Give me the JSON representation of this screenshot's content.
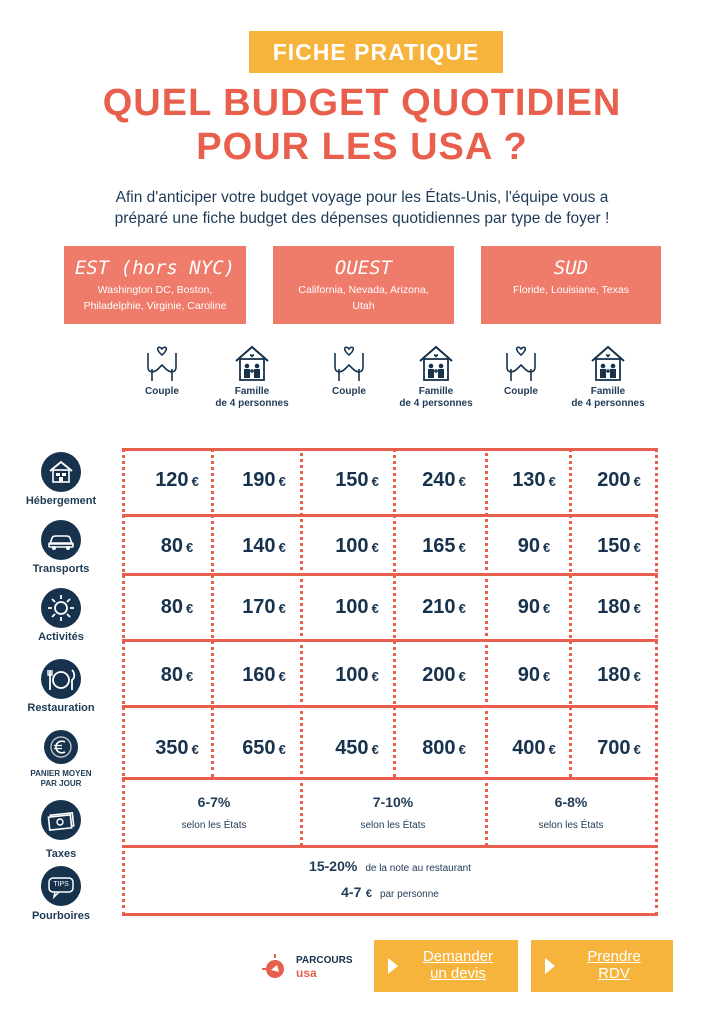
{
  "header": {
    "badge": "FICHE PRATIQUE",
    "title_line1": "QUEL BUDGET QUOTIDIEN",
    "title_line2": "POUR LES USA ?",
    "intro_line1": "Afin d'anticiper votre budget voyage pour les États-Unis, l'équipe vous a",
    "intro_line2": "préparé une fiche budget des dépenses quotidiennes par type de foyer !"
  },
  "regions": [
    {
      "name": "EST (hors NYC)",
      "states_line1": "Washington DC, Boston,",
      "states_line2": "Philadelphie, Virginie, Caroline"
    },
    {
      "name": "OUEST",
      "states_line1": "California, Nevada, Arizona,",
      "states_line2": "Utah"
    },
    {
      "name": "SUD",
      "states_line1": "Floride, Louisiane, Texas",
      "states_line2": ""
    }
  ],
  "households": {
    "couple": "Couple",
    "family_line1": "Famille",
    "family_line2": "de 4 personnes"
  },
  "categories": {
    "lodging": "Hébergement",
    "transport": "Transports",
    "activities": "Activités",
    "food": "Restauration",
    "basket_line1": "PANIER MOYEN",
    "basket_line2": "PAR JOUR",
    "taxes": "Taxes",
    "tips": "Pourboires"
  },
  "currency": "€",
  "table": {
    "rows": [
      [
        "120",
        "190",
        "150",
        "240",
        "130",
        "200"
      ],
      [
        "80",
        "140",
        "100",
        "165",
        "90",
        "150"
      ],
      [
        "80",
        "170",
        "100",
        "210",
        "90",
        "180"
      ],
      [
        "80",
        "160",
        "100",
        "200",
        "90",
        "180"
      ],
      [
        "350",
        "650",
        "450",
        "800",
        "400",
        "700"
      ]
    ]
  },
  "taxes": [
    {
      "value": "6-7%",
      "note": "selon les États"
    },
    {
      "value": "7-10%",
      "note": "selon les États"
    },
    {
      "value": "6-8%",
      "note": "selon les États"
    }
  ],
  "tips": {
    "restaurant_value": "15-20%",
    "restaurant_note": "de la note au restaurant",
    "person_value": "4-7",
    "person_unit": "€",
    "person_note": "par personne"
  },
  "icons": {
    "tips_text": "TIPS"
  },
  "logo": {
    "line1": "PARCOURS",
    "line2": "usa"
  },
  "cta": {
    "devis_line1": "Demander",
    "devis_line2": "un devis",
    "rdv_line1": "Prendre",
    "rdv_line2": "RDV"
  },
  "colors": {
    "accent": "#e8604d",
    "region_bg": "#ef7b6a",
    "badge": "#f7b43c",
    "navy": "#17324d"
  }
}
